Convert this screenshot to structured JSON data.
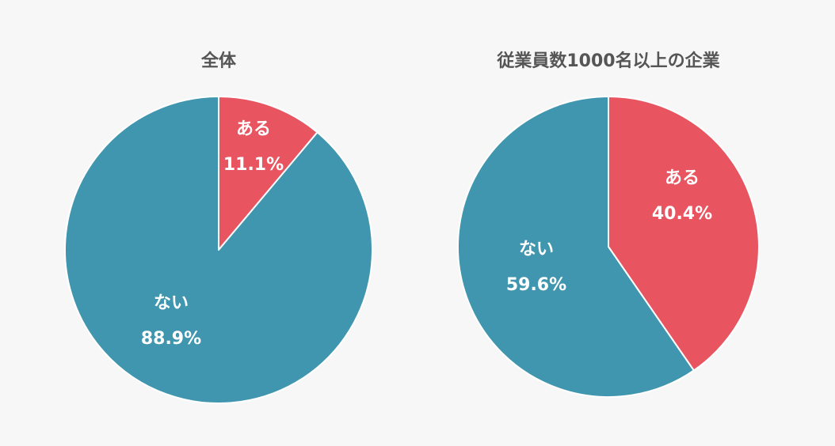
{
  "chart_data": [
    {
      "type": "pie",
      "title": "全体",
      "slices": [
        {
          "label": "ある",
          "value": 11.1,
          "value_label": "11.1%",
          "color": "#e8545f"
        },
        {
          "label": "ない",
          "value": 88.9,
          "value_label": "88.9%",
          "color": "#3f96ae"
        }
      ]
    },
    {
      "type": "pie",
      "title": "従業員数1000名以上の企業",
      "slices": [
        {
          "label": "ある",
          "value": 40.4,
          "value_label": "40.4%",
          "color": "#e8545f"
        },
        {
          "label": "ない",
          "value": 59.6,
          "value_label": "59.6%",
          "color": "#3f96ae"
        }
      ]
    }
  ]
}
